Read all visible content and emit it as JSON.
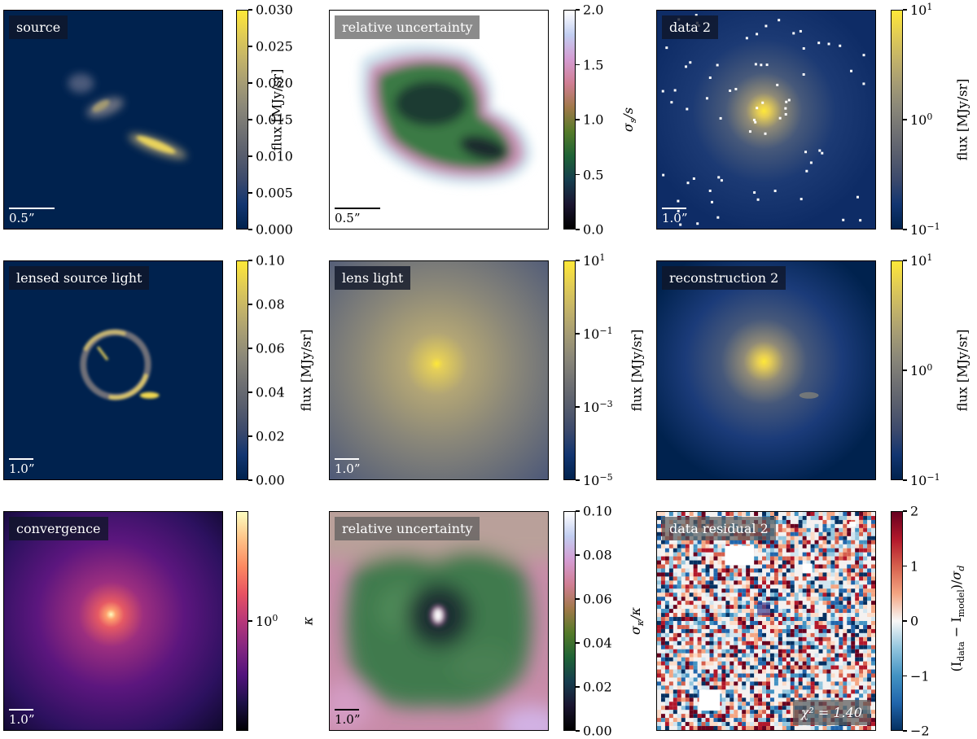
{
  "chart_data": [
    {
      "type": "heatmap",
      "title": "source",
      "scalebar": "0.5”",
      "colormap": "cividis",
      "colorbar": {
        "label": "flux [MJy/sr]",
        "scale": "linear",
        "range": [
          0,
          0.03
        ],
        "ticks": [
          "0.000",
          "0.005",
          "0.010",
          "0.015",
          "0.020",
          "0.025",
          "0.030"
        ]
      }
    },
    {
      "type": "heatmap",
      "title": "relative uncertainty",
      "scalebar": "0.5”",
      "colormap": "cubehelix",
      "colorbar": {
        "label": "σs/s",
        "scale": "linear",
        "range": [
          0,
          2
        ],
        "ticks": [
          "0.0",
          "0.5",
          "1.0",
          "1.5",
          "2.0"
        ]
      }
    },
    {
      "type": "heatmap",
      "title": "data 2",
      "scalebar": "1.0”",
      "colormap": "cividis",
      "colorbar": {
        "label": "flux [MJy/sr]",
        "scale": "log",
        "range": [
          0.1,
          10
        ],
        "ticks": [
          "10",
          "10",
          "10"
        ],
        "exponents": [
          "1",
          "0",
          "−1"
        ]
      }
    },
    {
      "type": "heatmap",
      "title": "lensed source light",
      "scalebar": "1.0”",
      "colormap": "cividis",
      "colorbar": {
        "label": "flux [MJy/sr]",
        "scale": "linear",
        "range": [
          0,
          0.1
        ],
        "ticks": [
          "0.00",
          "0.02",
          "0.04",
          "0.06",
          "0.08",
          "0.10"
        ]
      }
    },
    {
      "type": "heatmap",
      "title": "lens light",
      "scalebar": "1.0”",
      "colormap": "cividis",
      "colorbar": {
        "label": "flux [MJy/sr]",
        "scale": "log",
        "range": [
          1e-05,
          10
        ],
        "ticks": [
          "10",
          "10",
          "10",
          "10"
        ],
        "exponents": [
          "1",
          "−1",
          "−3",
          "−5"
        ]
      }
    },
    {
      "type": "heatmap",
      "title": "reconstruction 2",
      "colormap": "cividis",
      "colorbar": {
        "label": "flux [MJy/sr]",
        "scale": "log",
        "range": [
          0.1,
          10
        ],
        "ticks": [
          "10",
          "10",
          "10"
        ],
        "exponents": [
          "1",
          "0",
          "−1"
        ]
      }
    },
    {
      "type": "heatmap",
      "title": "convergence",
      "scalebar": "1.0”",
      "colormap": "magma",
      "colorbar": {
        "label": "κ",
        "scale": "log",
        "ticks": [
          "10"
        ],
        "exponents": [
          "0"
        ]
      }
    },
    {
      "type": "heatmap",
      "title": "relative uncertainty",
      "scalebar": "1.0”",
      "colormap": "cubehelix",
      "colorbar": {
        "label": "σκ/κ",
        "scale": "linear",
        "range": [
          0,
          0.1
        ],
        "ticks": [
          "0.10",
          "0.08",
          "0.06",
          "0.04",
          "0.02",
          "0.00"
        ]
      }
    },
    {
      "type": "heatmap",
      "title": "data residual 2",
      "annotation": "χ² = 1.40",
      "colormap": "RdBu_r",
      "colorbar": {
        "label": "(Idata − Imodel)/σd",
        "scale": "linear",
        "range": [
          -2,
          2
        ],
        "ticks": [
          "2",
          "1",
          "0",
          "−1",
          "−2"
        ]
      }
    }
  ]
}
